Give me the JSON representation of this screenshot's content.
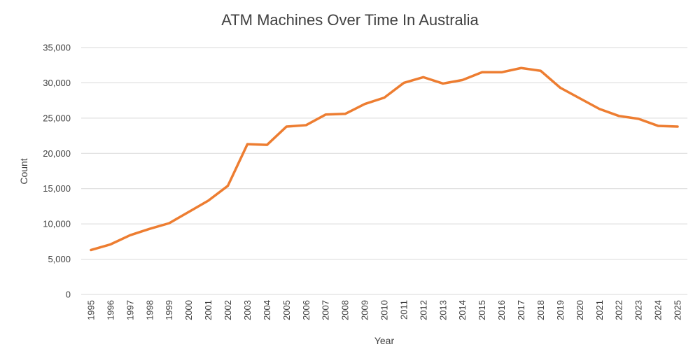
{
  "chart_data": {
    "type": "line",
    "title": "ATM Machines Over Time In Australia",
    "xlabel": "Year",
    "ylabel": "Count",
    "ylim": [
      0,
      35000
    ],
    "y_ticks": [
      0,
      5000,
      10000,
      15000,
      20000,
      25000,
      30000,
      35000
    ],
    "y_tick_labels": [
      "0",
      "5,000",
      "10,000",
      "15,000",
      "20,000",
      "25,000",
      "30,000",
      "35,000"
    ],
    "grid": true,
    "legend": "none",
    "categories": [
      "1995",
      "1996",
      "1997",
      "1998",
      "1999",
      "2000",
      "2001",
      "2002",
      "2003",
      "2004",
      "2005",
      "2006",
      "2007",
      "2008",
      "2009",
      "2010",
      "2011",
      "2012",
      "2013",
      "2014",
      "2015",
      "2016",
      "2017",
      "2018",
      "2019",
      "2020",
      "2021",
      "2022",
      "2023",
      "2024",
      "2025"
    ],
    "series": [
      {
        "color": "#ed7d31",
        "values": [
          6300,
          7100,
          8400,
          9300,
          10100,
          11700,
          13300,
          15400,
          21300,
          21200,
          23800,
          24000,
          25500,
          25600,
          27000,
          27900,
          30000,
          30800,
          29900,
          30400,
          31500,
          31500,
          32100,
          31700,
          29300,
          27800,
          26300,
          25300,
          24900,
          23900,
          23800
        ]
      }
    ]
  }
}
